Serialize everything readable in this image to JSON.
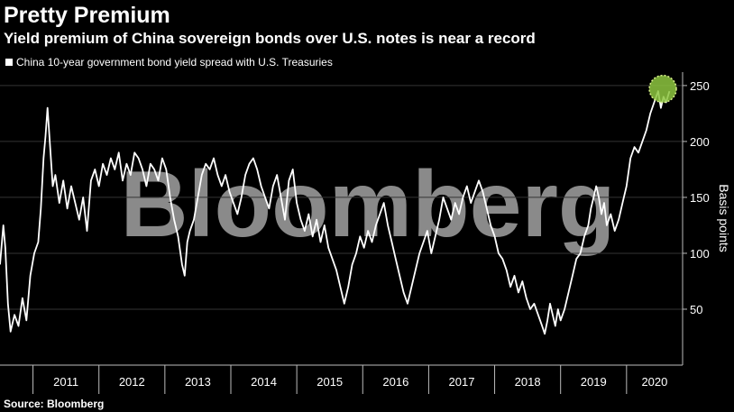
{
  "header": {
    "title": "Pretty Premium",
    "subtitle": "Yield premium of China sovereign bonds over U.S. notes is near a record"
  },
  "legend": {
    "label": "China 10-year government bond yield spread with U.S. Treasuries",
    "color": "#ffffff"
  },
  "footer": {
    "source": "Source: Bloomberg"
  },
  "watermark": {
    "text": "Bloomberg"
  },
  "highlight": {
    "color": "#8dc63f",
    "x": 2020.55,
    "y": 247
  },
  "chart_data": {
    "type": "line",
    "title": "Pretty Premium",
    "subtitle": "Yield premium of China sovereign bonds over U.S. notes is near a record",
    "xlabel": "",
    "ylabel": "Basis points",
    "xlim": [
      2010.5,
      2020.85
    ],
    "ylim": [
      0,
      262
    ],
    "yticks": [
      50,
      100,
      150,
      200,
      250
    ],
    "xticks": [
      "2011",
      "2012",
      "2013",
      "2014",
      "2015",
      "2016",
      "2017",
      "2018",
      "2019",
      "2020"
    ],
    "grid": true,
    "legend_position": "top-left",
    "series": [
      {
        "name": "China 10-year government bond yield spread with U.S. Treasuries",
        "color": "#ffffff",
        "points": [
          [
            2010.5,
            90
          ],
          [
            2010.55,
            125
          ],
          [
            2010.58,
            105
          ],
          [
            2010.62,
            55
          ],
          [
            2010.66,
            30
          ],
          [
            2010.72,
            45
          ],
          [
            2010.78,
            35
          ],
          [
            2010.84,
            60
          ],
          [
            2010.9,
            40
          ],
          [
            2010.96,
            80
          ],
          [
            2011.02,
            100
          ],
          [
            2011.08,
            110
          ],
          [
            2011.12,
            140
          ],
          [
            2011.16,
            185
          ],
          [
            2011.19,
            205
          ],
          [
            2011.22,
            230
          ],
          [
            2011.26,
            195
          ],
          [
            2011.3,
            160
          ],
          [
            2011.34,
            170
          ],
          [
            2011.4,
            145
          ],
          [
            2011.46,
            165
          ],
          [
            2011.52,
            140
          ],
          [
            2011.58,
            160
          ],
          [
            2011.64,
            145
          ],
          [
            2011.7,
            130
          ],
          [
            2011.76,
            150
          ],
          [
            2011.82,
            120
          ],
          [
            2011.88,
            165
          ],
          [
            2011.94,
            175
          ],
          [
            2012.0,
            160
          ],
          [
            2012.06,
            180
          ],
          [
            2012.12,
            170
          ],
          [
            2012.18,
            185
          ],
          [
            2012.24,
            175
          ],
          [
            2012.3,
            190
          ],
          [
            2012.36,
            165
          ],
          [
            2012.42,
            180
          ],
          [
            2012.48,
            170
          ],
          [
            2012.54,
            190
          ],
          [
            2012.6,
            185
          ],
          [
            2012.66,
            175
          ],
          [
            2012.72,
            160
          ],
          [
            2012.78,
            180
          ],
          [
            2012.84,
            175
          ],
          [
            2012.9,
            165
          ],
          [
            2012.96,
            185
          ],
          [
            2013.02,
            175
          ],
          [
            2013.08,
            150
          ],
          [
            2013.14,
            130
          ],
          [
            2013.2,
            115
          ],
          [
            2013.26,
            90
          ],
          [
            2013.3,
            80
          ],
          [
            2013.34,
            110
          ],
          [
            2013.38,
            120
          ],
          [
            2013.44,
            130
          ],
          [
            2013.5,
            150
          ],
          [
            2013.56,
            170
          ],
          [
            2013.62,
            180
          ],
          [
            2013.68,
            175
          ],
          [
            2013.74,
            185
          ],
          [
            2013.8,
            170
          ],
          [
            2013.86,
            160
          ],
          [
            2013.92,
            170
          ],
          [
            2013.98,
            155
          ],
          [
            2014.04,
            145
          ],
          [
            2014.1,
            135
          ],
          [
            2014.16,
            150
          ],
          [
            2014.22,
            170
          ],
          [
            2014.28,
            180
          ],
          [
            2014.34,
            185
          ],
          [
            2014.4,
            175
          ],
          [
            2014.46,
            160
          ],
          [
            2014.52,
            150
          ],
          [
            2014.58,
            140
          ],
          [
            2014.64,
            160
          ],
          [
            2014.7,
            170
          ],
          [
            2014.76,
            150
          ],
          [
            2014.82,
            130
          ],
          [
            2014.88,
            165
          ],
          [
            2014.94,
            175
          ],
          [
            2015.0,
            145
          ],
          [
            2015.06,
            130
          ],
          [
            2015.12,
            120
          ],
          [
            2015.18,
            135
          ],
          [
            2015.24,
            115
          ],
          [
            2015.3,
            130
          ],
          [
            2015.36,
            110
          ],
          [
            2015.42,
            125
          ],
          [
            2015.48,
            105
          ],
          [
            2015.54,
            95
          ],
          [
            2015.6,
            85
          ],
          [
            2015.66,
            70
          ],
          [
            2015.72,
            55
          ],
          [
            2015.78,
            70
          ],
          [
            2015.84,
            90
          ],
          [
            2015.9,
            100
          ],
          [
            2015.96,
            115
          ],
          [
            2016.02,
            105
          ],
          [
            2016.08,
            120
          ],
          [
            2016.14,
            110
          ],
          [
            2016.2,
            125
          ],
          [
            2016.26,
            135
          ],
          [
            2016.32,
            145
          ],
          [
            2016.38,
            125
          ],
          [
            2016.44,
            110
          ],
          [
            2016.5,
            95
          ],
          [
            2016.56,
            80
          ],
          [
            2016.62,
            65
          ],
          [
            2016.68,
            55
          ],
          [
            2016.74,
            70
          ],
          [
            2016.8,
            85
          ],
          [
            2016.86,
            100
          ],
          [
            2016.92,
            110
          ],
          [
            2016.98,
            120
          ],
          [
            2017.04,
            100
          ],
          [
            2017.1,
            115
          ],
          [
            2017.16,
            130
          ],
          [
            2017.22,
            150
          ],
          [
            2017.28,
            140
          ],
          [
            2017.34,
            130
          ],
          [
            2017.4,
            145
          ],
          [
            2017.46,
            135
          ],
          [
            2017.52,
            150
          ],
          [
            2017.58,
            160
          ],
          [
            2017.64,
            145
          ],
          [
            2017.7,
            155
          ],
          [
            2017.76,
            165
          ],
          [
            2017.82,
            155
          ],
          [
            2017.88,
            140
          ],
          [
            2017.94,
            125
          ],
          [
            2018.0,
            115
          ],
          [
            2018.06,
            100
          ],
          [
            2018.12,
            95
          ],
          [
            2018.18,
            85
          ],
          [
            2018.24,
            70
          ],
          [
            2018.3,
            80
          ],
          [
            2018.36,
            65
          ],
          [
            2018.42,
            75
          ],
          [
            2018.48,
            60
          ],
          [
            2018.54,
            50
          ],
          [
            2018.6,
            55
          ],
          [
            2018.66,
            45
          ],
          [
            2018.72,
            35
          ],
          [
            2018.76,
            28
          ],
          [
            2018.8,
            40
          ],
          [
            2018.84,
            55
          ],
          [
            2018.88,
            45
          ],
          [
            2018.92,
            35
          ],
          [
            2018.96,
            50
          ],
          [
            2019.0,
            40
          ],
          [
            2019.06,
            50
          ],
          [
            2019.12,
            65
          ],
          [
            2019.18,
            80
          ],
          [
            2019.24,
            95
          ],
          [
            2019.3,
            100
          ],
          [
            2019.36,
            115
          ],
          [
            2019.42,
            125
          ],
          [
            2019.46,
            140
          ],
          [
            2019.5,
            150
          ],
          [
            2019.54,
            160
          ],
          [
            2019.58,
            150
          ],
          [
            2019.62,
            135
          ],
          [
            2019.66,
            145
          ],
          [
            2019.7,
            125
          ],
          [
            2019.76,
            135
          ],
          [
            2019.82,
            120
          ],
          [
            2019.88,
            130
          ],
          [
            2019.94,
            145
          ],
          [
            2020.0,
            160
          ],
          [
            2020.06,
            185
          ],
          [
            2020.12,
            195
          ],
          [
            2020.18,
            190
          ],
          [
            2020.24,
            200
          ],
          [
            2020.3,
            210
          ],
          [
            2020.36,
            225
          ],
          [
            2020.42,
            235
          ],
          [
            2020.48,
            245
          ],
          [
            2020.52,
            230
          ],
          [
            2020.56,
            240
          ],
          [
            2020.6,
            235
          ],
          [
            2020.65,
            245
          ]
        ]
      }
    ]
  }
}
